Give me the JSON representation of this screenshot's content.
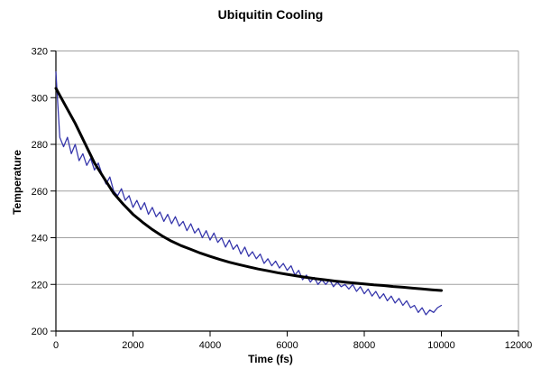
{
  "chart_data": {
    "type": "line",
    "title": "Ubiquitin Cooling",
    "xlabel": "Time (fs)",
    "ylabel": "Temperature",
    "xlim": [
      0,
      12000
    ],
    "ylim": [
      200,
      320
    ],
    "xticks": [
      0,
      2000,
      4000,
      6000,
      8000,
      10000,
      12000
    ],
    "yticks": [
      200,
      220,
      240,
      260,
      280,
      300,
      320
    ],
    "grid": "horizontal-only",
    "legend": "none",
    "colors": {
      "background": "#ffffff",
      "gridline": "#a0a0a0",
      "plot_border": "#a0a0a0",
      "axis": "#000000",
      "tick_label": "#000000",
      "noisy_line": "#3333aa",
      "fit_line": "#000000"
    },
    "series": [
      {
        "name": "temperature-data-line",
        "color": "#3333aa",
        "stroke_width": 1.25,
        "x": [
          0,
          100,
          200,
          300,
          400,
          500,
          600,
          700,
          800,
          900,
          1000,
          1100,
          1200,
          1300,
          1400,
          1500,
          1600,
          1700,
          1800,
          1900,
          2000,
          2100,
          2200,
          2300,
          2400,
          2500,
          2600,
          2700,
          2800,
          2900,
          3000,
          3100,
          3200,
          3300,
          3400,
          3500,
          3600,
          3700,
          3800,
          3900,
          4000,
          4100,
          4200,
          4300,
          4400,
          4500,
          4600,
          4700,
          4800,
          4900,
          5000,
          5100,
          5200,
          5300,
          5400,
          5500,
          5600,
          5700,
          5800,
          5900,
          6000,
          6100,
          6200,
          6300,
          6400,
          6500,
          6600,
          6700,
          6800,
          6900,
          7000,
          7100,
          7200,
          7300,
          7400,
          7500,
          7600,
          7700,
          7800,
          7900,
          8000,
          8100,
          8200,
          8300,
          8400,
          8500,
          8600,
          8700,
          8800,
          8900,
          9000,
          9100,
          9200,
          9300,
          9400,
          9500,
          9600,
          9700,
          9800,
          9900,
          10000
        ],
        "y": [
          311,
          283,
          279,
          283,
          276,
          280,
          273,
          276,
          271,
          274,
          269,
          272,
          267,
          263,
          266,
          260,
          258,
          261,
          256,
          258,
          253,
          256,
          252,
          255,
          250,
          253,
          249,
          251,
          247,
          250,
          246,
          249,
          245,
          247,
          243,
          246,
          242,
          244,
          240,
          243,
          239,
          242,
          238,
          240,
          236,
          239,
          235,
          237,
          233,
          236,
          232,
          234,
          231,
          233,
          229,
          231,
          228,
          230,
          227,
          229,
          226,
          228,
          224,
          226,
          222,
          224,
          221,
          223,
          220,
          222,
          220,
          222,
          219,
          221,
          219,
          220,
          218,
          220,
          217,
          219,
          216,
          218,
          215,
          217,
          214,
          216,
          213,
          215,
          212,
          214,
          211,
          213,
          210,
          211,
          208,
          210,
          207,
          209,
          208,
          210,
          211
        ]
      },
      {
        "name": "cooling-fit-line",
        "color": "#000000",
        "stroke_width": 3,
        "x": [
          0,
          250,
          500,
          750,
          1000,
          1250,
          1500,
          1750,
          2000,
          2250,
          2500,
          2750,
          3000,
          3250,
          3500,
          3750,
          4000,
          4250,
          4500,
          4750,
          5000,
          5250,
          5500,
          5750,
          6000,
          6250,
          6500,
          6750,
          7000,
          7250,
          7500,
          7750,
          8000,
          8250,
          8500,
          8750,
          9000,
          9250,
          9500,
          9750,
          10000
        ],
        "y": [
          304,
          296.5,
          289,
          280.5,
          272,
          265.5,
          259,
          254.3,
          250,
          246.6,
          243.5,
          240.8,
          238.5,
          236.6,
          235,
          233.4,
          232,
          230.7,
          229.5,
          228.5,
          227.5,
          226.6,
          225.8,
          225,
          224.3,
          223.6,
          223,
          222.4,
          221.9,
          221.4,
          221,
          220.6,
          220.2,
          219.8,
          219.5,
          219.1,
          218.8,
          218.4,
          218.1,
          217.7,
          217.4
        ]
      }
    ]
  }
}
